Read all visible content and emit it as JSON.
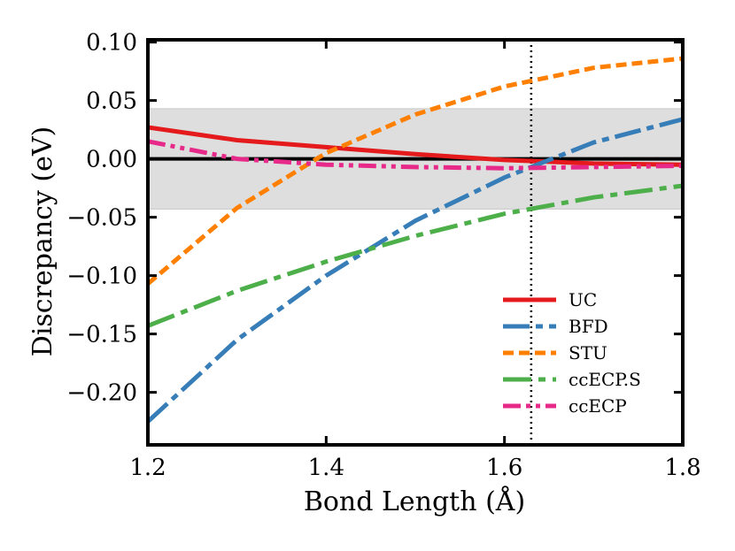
{
  "chart_data": {
    "type": "line",
    "title": "",
    "xlabel": "Bond Length (Å)",
    "ylabel": "Discrepancy (eV)",
    "xlim": [
      1.2,
      1.8
    ],
    "ylim": [
      -0.245,
      0.102
    ],
    "xticks": [
      1.2,
      1.4,
      1.6,
      1.8
    ],
    "xtick_labels": [
      "1.2",
      "1.4",
      "1.6",
      "1.8"
    ],
    "yticks": [
      0.1,
      0.05,
      0.0,
      -0.05,
      -0.1,
      -0.15,
      -0.2
    ],
    "ytick_labels": [
      "0.10",
      "0.05",
      "0.00",
      "−0.05",
      "−0.10",
      "−0.15",
      "−0.20"
    ],
    "shaded_band": [
      -0.043,
      0.043
    ],
    "zero_line": 0.0,
    "vertical_line_x": 1.63,
    "legend_position": "lower-right",
    "grid": false,
    "x": [
      1.2,
      1.3,
      1.4,
      1.5,
      1.6,
      1.7,
      1.8
    ],
    "series": [
      {
        "name": "UC",
        "color": "#e41a1c",
        "dash": "solid",
        "values": [
          0.027,
          0.016,
          0.01,
          0.004,
          -0.001,
          -0.004,
          -0.005
        ]
      },
      {
        "name": "BFD",
        "color": "#377eb8",
        "dash": "longdash",
        "values": [
          -0.225,
          -0.155,
          -0.1,
          -0.053,
          -0.016,
          0.014,
          0.034
        ]
      },
      {
        "name": "STU",
        "color": "#ff7f00",
        "dash": "dash",
        "values": [
          -0.107,
          -0.042,
          0.005,
          0.038,
          0.062,
          0.078,
          0.086
        ]
      },
      {
        "name": "ccECP.S",
        "color": "#4daf4a",
        "dash": "dashdot",
        "values": [
          -0.143,
          -0.113,
          -0.088,
          -0.066,
          -0.047,
          -0.033,
          -0.023
        ]
      },
      {
        "name": "ccECP",
        "color": "#e7298a",
        "dash": "dashdotdot",
        "values": [
          0.015,
          0.0,
          -0.005,
          -0.007,
          -0.008,
          -0.007,
          -0.006
        ]
      }
    ]
  }
}
